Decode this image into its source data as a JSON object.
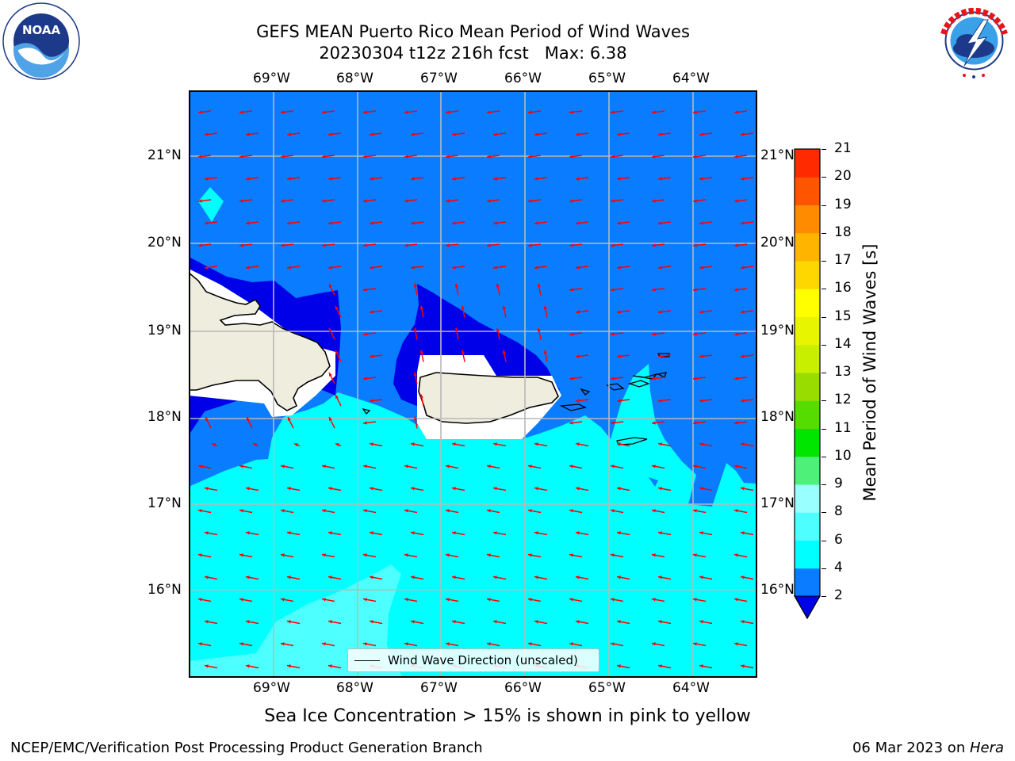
{
  "header": {
    "title_line1": "GEFS MEAN Puerto Rico Mean Period of Wind Waves",
    "title_line2": "20230304 t12z 216h fcst   Max: 6.38"
  },
  "logos": {
    "noaa": {
      "text": "NOAA",
      "ring_text": "NATIONAL OCEANIC AND ATMOSPHERIC ADMINISTRATION · U.S. DEPARTMENT OF COMMERCE"
    },
    "nws": {
      "ring_text": "NATIONAL WEATHER SERVICE"
    }
  },
  "map": {
    "lon_labels": [
      "69°W",
      "68°W",
      "67°W",
      "66°W",
      "65°W",
      "64°W"
    ],
    "lat_labels": [
      "21°N",
      "20°N",
      "19°N",
      "18°N",
      "17°N",
      "16°N"
    ],
    "legend_label": "Wind Wave Direction (unscaled)",
    "vector_color": "#ff0000",
    "colors": {
      "ocean_2_4": "#0a7cff",
      "ocean_below_2": "#0000e8",
      "ocean_4_6": "#00ffff",
      "ocean_6_8": "#4dffff",
      "land": "#efedde",
      "nodata": "#ffffff"
    }
  },
  "colorbar": {
    "title": "Mean Period of Wind Waves [s]",
    "ticks": [
      "2",
      "4",
      "6",
      "8",
      "9",
      "10",
      "11",
      "12",
      "13",
      "14",
      "15",
      "16",
      "17",
      "18",
      "19",
      "20",
      "21"
    ],
    "colors": [
      "#0a7cff",
      "#00ffff",
      "#4dffff",
      "#99ffff",
      "#4ff07a",
      "#00e600",
      "#55dd00",
      "#99dd00",
      "#c8ee00",
      "#e8f500",
      "#ffff00",
      "#ffd700",
      "#ffb400",
      "#ff8c00",
      "#ff5500",
      "#ff2a00",
      "#ff0000"
    ],
    "under_color": "#0000e8"
  },
  "subtitle": "Sea Ice Concentration > 15% is shown in pink to yellow",
  "footer": {
    "left": "NCEP/EMC/Verification Post Processing Product Generation Branch",
    "right_prefix": "06 Mar 2023 on ",
    "right_host": "Hera"
  }
}
